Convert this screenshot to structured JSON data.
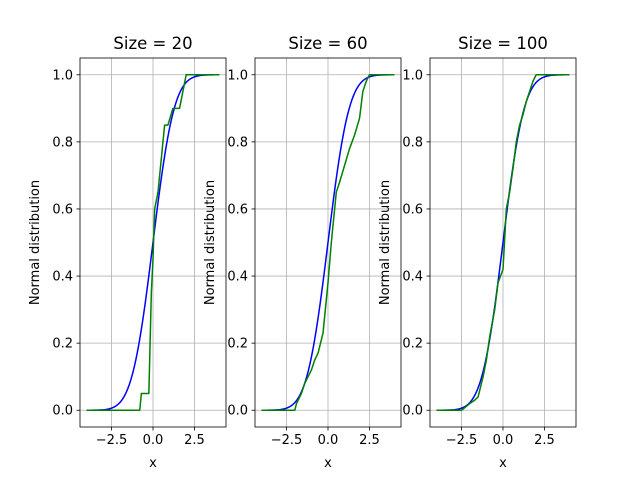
{
  "figure": {
    "background": "#ffffff",
    "grid_color": "#b0b0b0",
    "theory_color": "#0000ff",
    "empirical_color": "#008000"
  },
  "chart_data": [
    {
      "type": "line",
      "title": "Size = 20",
      "xlabel": "x",
      "ylabel": "Normal distribution",
      "xlim": [
        -4.4,
        4.4
      ],
      "ylim": [
        -0.05,
        1.05
      ],
      "xticks": [
        -2.5,
        0.0,
        2.5
      ],
      "xtick_labels": [
        "−2.5",
        "0.0",
        "2.5"
      ],
      "yticks": [
        0.0,
        0.2,
        0.4,
        0.6,
        0.8,
        1.0
      ],
      "ytick_labels": [
        "0.0",
        "0.2",
        "0.4",
        "0.6",
        "0.8",
        "1.0"
      ],
      "grid": true,
      "series": [
        {
          "kind": "normal_cdf",
          "x_range": [
            -4,
            4
          ],
          "samples": 101
        },
        {
          "kind": "empirical_cdf",
          "x": [
            -4.0,
            -2.6,
            -2.3,
            -0.8,
            -0.7,
            -0.25,
            -0.2,
            -0.1,
            0.0,
            0.1,
            0.3,
            0.5,
            0.7,
            0.9,
            1.2,
            1.6,
            1.8,
            2.0,
            4.0
          ],
          "y": [
            0.0,
            0.0,
            0.0,
            0.0,
            0.05,
            0.05,
            0.15,
            0.35,
            0.45,
            0.6,
            0.65,
            0.75,
            0.85,
            0.85,
            0.9,
            0.9,
            0.95,
            1.0,
            1.0
          ]
        }
      ]
    },
    {
      "type": "line",
      "title": "Size = 60",
      "xlabel": "x",
      "ylabel": "Normal distribution",
      "xlim": [
        -4.4,
        4.4
      ],
      "ylim": [
        -0.05,
        1.05
      ],
      "xticks": [
        -2.5,
        0.0,
        2.5
      ],
      "xtick_labels": [
        "−2.5",
        "0.0",
        "2.5"
      ],
      "yticks": [
        0.0,
        0.2,
        0.4,
        0.6,
        0.8,
        1.0
      ],
      "ytick_labels": [
        "0.0",
        "0.2",
        "0.4",
        "0.6",
        "0.8",
        "1.0"
      ],
      "grid": true,
      "series": [
        {
          "kind": "normal_cdf",
          "x_range": [
            -4,
            4
          ],
          "samples": 101
        },
        {
          "kind": "empirical_cdf",
          "x": [
            -4.0,
            -2.0,
            -1.9,
            -1.6,
            -1.4,
            -1.2,
            -1.0,
            -0.8,
            -0.6,
            -0.3,
            0.0,
            0.2,
            0.5,
            0.7,
            1.0,
            1.3,
            1.6,
            1.9,
            2.1,
            2.3,
            2.5,
            4.0
          ],
          "y": [
            0.0,
            0.0,
            0.02,
            0.05,
            0.08,
            0.1,
            0.12,
            0.15,
            0.17,
            0.23,
            0.38,
            0.5,
            0.65,
            0.68,
            0.73,
            0.78,
            0.82,
            0.87,
            0.95,
            0.98,
            1.0,
            1.0
          ]
        }
      ]
    },
    {
      "type": "line",
      "title": "Size = 100",
      "xlabel": "x",
      "ylabel": "Normal distribution",
      "xlim": [
        -4.4,
        4.4
      ],
      "ylim": [
        -0.05,
        1.05
      ],
      "xticks": [
        -2.5,
        0.0,
        2.5
      ],
      "xtick_labels": [
        "−2.5",
        "0.0",
        "2.5"
      ],
      "yticks": [
        0.0,
        0.2,
        0.4,
        0.6,
        0.8,
        1.0
      ],
      "ytick_labels": [
        "0.0",
        "0.2",
        "0.4",
        "0.6",
        "0.8",
        "1.0"
      ],
      "grid": true,
      "series": [
        {
          "kind": "normal_cdf",
          "x_range": [
            -4,
            4
          ],
          "samples": 101
        },
        {
          "kind": "empirical_cdf",
          "x": [
            -4.0,
            -2.5,
            -2.0,
            -1.7,
            -1.5,
            -1.2,
            -1.0,
            -0.8,
            -0.5,
            -0.3,
            0.0,
            0.2,
            0.4,
            0.6,
            0.8,
            1.0,
            1.2,
            1.4,
            1.6,
            1.8,
            2.0,
            4.0
          ],
          "y": [
            0.0,
            0.0,
            0.02,
            0.03,
            0.04,
            0.1,
            0.15,
            0.22,
            0.3,
            0.38,
            0.42,
            0.6,
            0.65,
            0.72,
            0.8,
            0.85,
            0.88,
            0.92,
            0.95,
            0.98,
            1.0,
            1.0
          ]
        }
      ]
    }
  ]
}
